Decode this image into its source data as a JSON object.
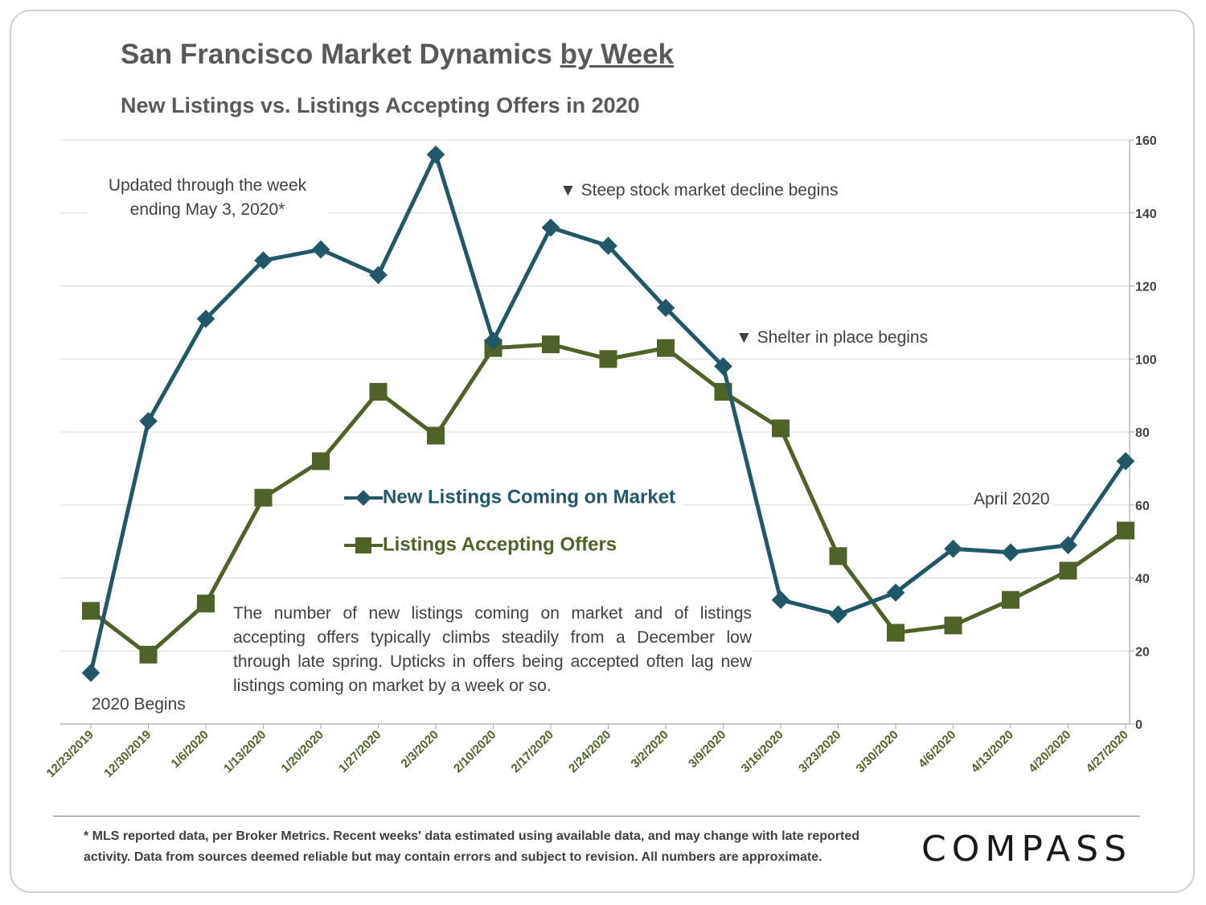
{
  "chart_data": {
    "type": "line",
    "title_main": "San Francisco Market Dynamics",
    "title_emphasis": "by Week",
    "subtitle": "New Listings vs. Listings Accepting Offers in 2020",
    "categories": [
      "12/23/2019",
      "12/30/2019",
      "1/6/2020",
      "1/13/2020",
      "1/20/2020",
      "1/27/2020",
      "2/3/2020",
      "2/10/2020",
      "2/17/2020",
      "2/24/2020",
      "3/2/2020",
      "3/9/2020",
      "3/16/2020",
      "3/23/2020",
      "3/30/2020",
      "4/6/2020",
      "4/13/2020",
      "4/20/2020",
      "4/27/2020"
    ],
    "series": [
      {
        "name": "New Listings Coming on Market",
        "color": "#215868",
        "marker": "diamond",
        "values": [
          14,
          83,
          111,
          127,
          130,
          123,
          156,
          105,
          136,
          131,
          114,
          98,
          34,
          30,
          36,
          48,
          47,
          49,
          72
        ]
      },
      {
        "name": "Listings Accepting Offers",
        "color": "#4f6228",
        "marker": "square",
        "values": [
          31,
          19,
          33,
          62,
          72,
          91,
          79,
          103,
          104,
          100,
          103,
          91,
          81,
          46,
          25,
          27,
          34,
          42,
          53
        ]
      }
    ],
    "y_axis": {
      "position": "right",
      "ylim": [
        0,
        160
      ],
      "ticks": [
        0,
        20,
        40,
        60,
        80,
        100,
        120,
        140,
        160
      ]
    },
    "grid": true,
    "annotations": {
      "updated": "Updated through the week ending May 3, 2020*",
      "stock_decline": "Steep stock market decline begins",
      "shelter": "Shelter in place begins",
      "april": "April 2020",
      "begins": "2020 Begins",
      "description": "The number of new listings coming on market and of listings accepting offers typically climbs steadily from a December low through late spring. Upticks in offers being accepted often lag new listings coming on market by a week or so."
    }
  },
  "footer": {
    "footnote": "* MLS reported data, per Broker Metrics. Recent weeks' data estimated using available data, and may change with late reported activity. Data from sources deemed reliable but may contain errors and subject to revision. All numbers are approximate.",
    "logo": "COMPASS"
  }
}
